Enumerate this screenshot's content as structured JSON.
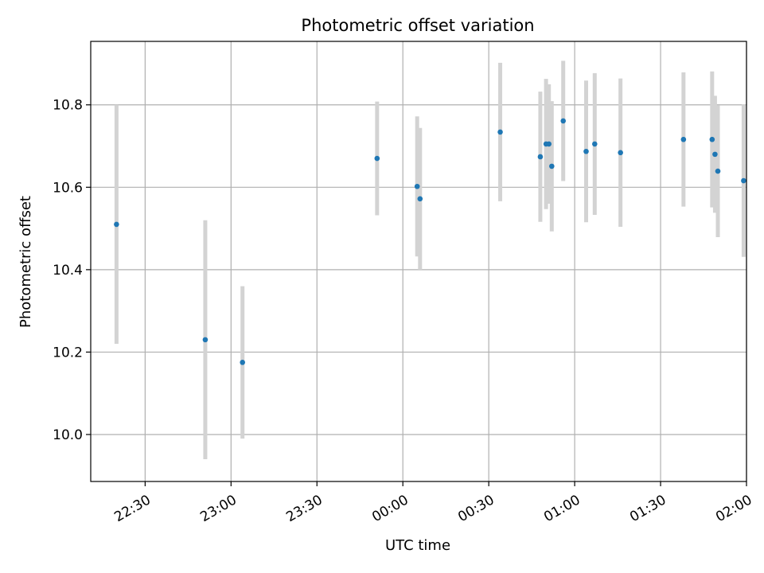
{
  "chart_data": {
    "type": "scatter",
    "title": "Photometric offset variation",
    "xlabel": "UTC time",
    "ylabel": "Photometric offset",
    "x_ticks": [
      "22:30",
      "23:00",
      "23:30",
      "00:00",
      "00:30",
      "01:00",
      "01:30",
      "02:00"
    ],
    "y_ticks": [
      "10.0",
      "10.2",
      "10.4",
      "10.6",
      "10.8"
    ],
    "xlim": [
      "22:11",
      "02:00"
    ],
    "ylim": [
      9.886,
      10.954
    ],
    "grid": true,
    "errorbar_color": "#d3d3d3",
    "point_color": "#1f77b4",
    "points": [
      {
        "t": "22:20",
        "y": 10.51,
        "yerr": 0.29
      },
      {
        "t": "22:51",
        "y": 10.23,
        "yerr": 0.29
      },
      {
        "t": "23:04",
        "y": 10.175,
        "yerr": 0.185
      },
      {
        "t": "23:51",
        "y": 10.67,
        "yerr": 0.138
      },
      {
        "t": "00:05",
        "y": 10.602,
        "yerr": 0.17
      },
      {
        "t": "00:06",
        "y": 10.572,
        "yerr": 0.172
      },
      {
        "t": "00:34",
        "y": 10.734,
        "yerr": 0.168
      },
      {
        "t": "00:48",
        "y": 10.674,
        "yerr": 0.158
      },
      {
        "t": "00:50",
        "y": 10.705,
        "yerr": 0.158
      },
      {
        "t": "00:51",
        "y": 10.705,
        "yerr": 0.145
      },
      {
        "t": "00:52",
        "y": 10.651,
        "yerr": 0.158
      },
      {
        "t": "00:56",
        "y": 10.761,
        "yerr": 0.146
      },
      {
        "t": "01:04",
        "y": 10.687,
        "yerr": 0.172
      },
      {
        "t": "01:07",
        "y": 10.705,
        "yerr": 0.172
      },
      {
        "t": "01:16",
        "y": 10.684,
        "yerr": 0.18
      },
      {
        "t": "01:38",
        "y": 10.716,
        "yerr": 0.163
      },
      {
        "t": "01:48",
        "y": 10.716,
        "yerr": 0.165
      },
      {
        "t": "01:49",
        "y": 10.68,
        "yerr": 0.142
      },
      {
        "t": "01:50",
        "y": 10.639,
        "yerr": 0.16
      },
      {
        "t": "01:59",
        "y": 10.616,
        "yerr": 0.185
      }
    ]
  }
}
